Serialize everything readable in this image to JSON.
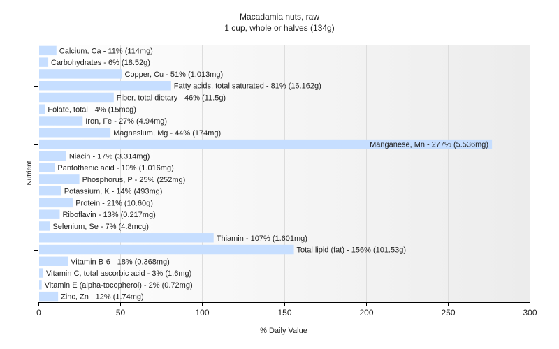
{
  "chart_data": {
    "type": "bar",
    "orientation": "horizontal",
    "title": "Macadamia nuts, raw",
    "subtitle": "1 cup, whole or halves (134g)",
    "xlabel": "% Daily Value",
    "ylabel": "Nutrient",
    "xlim": [
      0,
      300
    ],
    "xticks": [
      0,
      50,
      100,
      150,
      200,
      250,
      300
    ],
    "grid": "vertical",
    "bar_color": "#c6deff",
    "plot_background": [
      "#ffffff",
      "#ececec"
    ],
    "categories": [
      "Calcium, Ca",
      "Carbohydrates",
      "Copper, Cu",
      "Fatty acids, total saturated",
      "Fiber, total dietary",
      "Folate, total",
      "Iron, Fe",
      "Magnesium, Mg",
      "Manganese, Mn",
      "Niacin",
      "Pantothenic acid",
      "Phosphorus, P",
      "Potassium, K",
      "Protein",
      "Riboflavin",
      "Selenium, Se",
      "Thiamin",
      "Total lipid (fat)",
      "Vitamin B-6",
      "Vitamin C, total ascorbic acid",
      "Vitamin E (alpha-tocopherol)",
      "Zinc, Zn"
    ],
    "values": [
      11,
      6,
      51,
      81,
      46,
      4,
      27,
      44,
      277,
      17,
      10,
      25,
      14,
      21,
      13,
      7,
      107,
      156,
      18,
      3,
      2,
      12
    ],
    "labels": [
      "Calcium, Ca - 11% (114mg)",
      "Carbohydrates - 6% (18.52g)",
      "Copper, Cu - 51% (1.013mg)",
      "Fatty acids, total saturated - 81% (16.162g)",
      "Fiber, total dietary - 46% (11.5g)",
      "Folate, total - 4% (15mcg)",
      "Iron, Fe - 27% (4.94mg)",
      "Magnesium, Mg - 44% (174mg)",
      "Manganese, Mn - 277% (5.536mg)",
      "Niacin - 17% (3.314mg)",
      "Pantothenic acid - 10% (1.016mg)",
      "Phosphorus, P - 25% (252mg)",
      "Potassium, K - 14% (493mg)",
      "Protein - 21% (10.60g)",
      "Riboflavin - 13% (0.217mg)",
      "Selenium, Se - 7% (4.8mcg)",
      "Thiamin - 107% (1.601mg)",
      "Total lipid (fat) - 156% (101.53g)",
      "Vitamin B-6 - 18% (0.368mg)",
      "Vitamin C, total ascorbic acid - 3% (1.6mg)",
      "Vitamin E (alpha-tocopherol) - 2% (0.72mg)",
      "Zinc, Zn - 12% (1.74mg)"
    ]
  }
}
